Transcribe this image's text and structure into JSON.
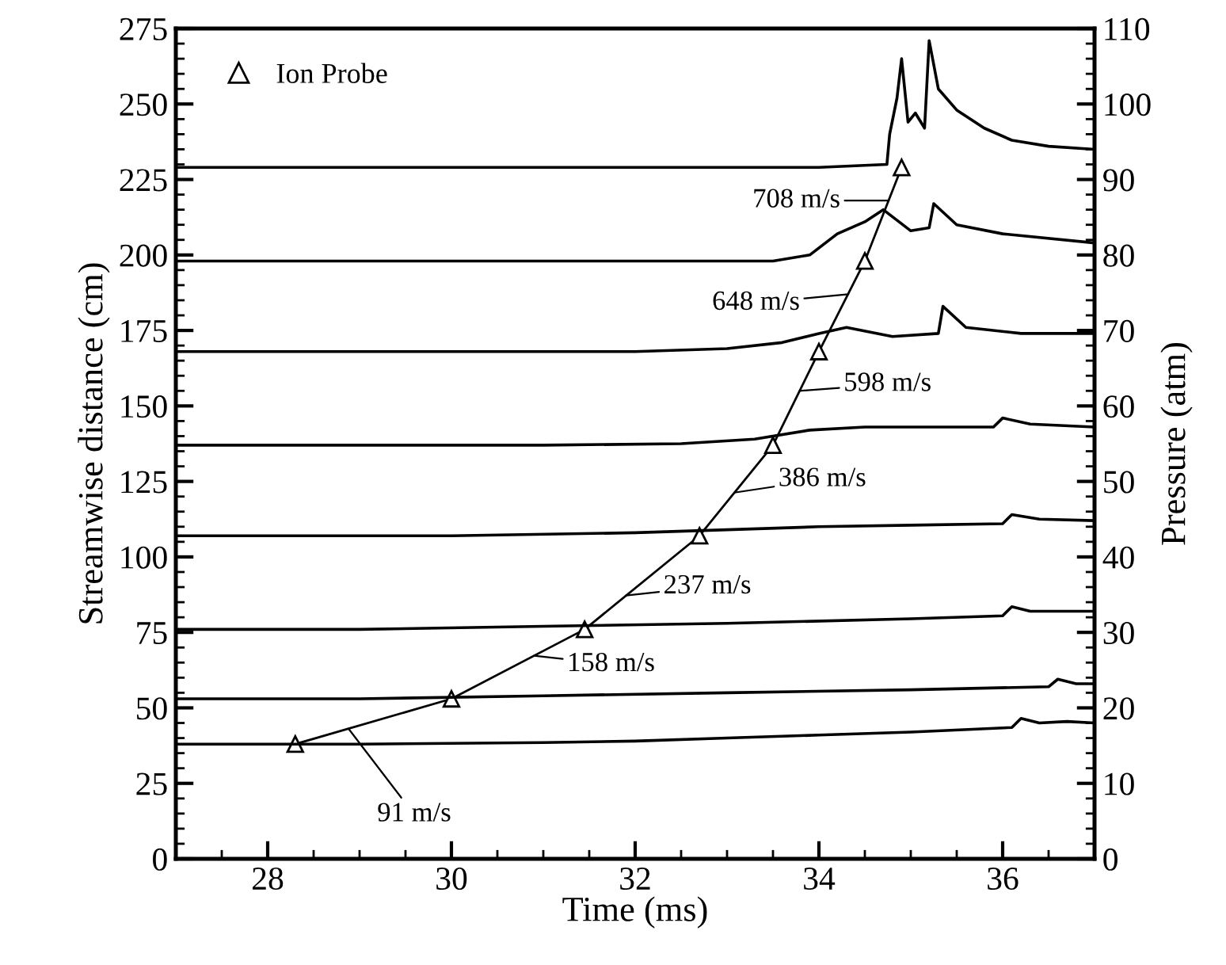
{
  "chart_data": {
    "type": "line",
    "xlabel": "Time (ms)",
    "ylabel": "Streamwise distance (cm)",
    "y2label": "Pressure (atm)",
    "xlim": [
      27,
      37
    ],
    "xticks": [
      28,
      30,
      32,
      34,
      36
    ],
    "ylim": [
      0,
      275
    ],
    "yticks": [
      0,
      25,
      50,
      75,
      100,
      125,
      150,
      175,
      200,
      225,
      250,
      275
    ],
    "y2lim": [
      0,
      110
    ],
    "y2ticks": [
      0,
      10,
      20,
      30,
      40,
      50,
      60,
      70,
      80,
      90,
      100,
      110
    ],
    "grid": false,
    "legend": "top left",
    "line_style": "solid",
    "series": [
      {
        "name": "Ion Probe",
        "color": "#000000",
        "marker": "triangle",
        "x": [
          28.3,
          30.0,
          31.45,
          32.7,
          33.5,
          34.0,
          34.5,
          34.9
        ],
        "values": [
          38,
          53,
          76,
          107,
          137,
          168,
          198,
          229
        ]
      },
      {
        "color": "#000000",
        "marker": "none",
        "x": [
          27,
          29,
          31,
          32,
          33,
          34,
          35,
          36.1,
          36.2,
          36.4,
          36.7,
          37
        ],
        "values": [
          38,
          38,
          38.5,
          39,
          40,
          41,
          42,
          43.5,
          46.5,
          45,
          45.5,
          45
        ]
      },
      {
        "color": "#000000",
        "marker": "none",
        "x": [
          27,
          29,
          31,
          33,
          35,
          36.5,
          36.6,
          36.8,
          37
        ],
        "values": [
          53,
          53,
          54,
          55,
          56,
          57,
          59.5,
          58,
          58
        ]
      },
      {
        "color": "#000000",
        "marker": "none",
        "x": [
          27,
          29,
          31,
          33,
          35,
          36.0,
          36.1,
          36.3,
          37
        ],
        "values": [
          76,
          76,
          77,
          78,
          79.5,
          80.5,
          83.5,
          82,
          82
        ]
      },
      {
        "color": "#000000",
        "marker": "none",
        "x": [
          27,
          30,
          32,
          33,
          34,
          35,
          36.0,
          36.1,
          36.4,
          37
        ],
        "values": [
          107,
          107,
          108,
          109,
          110,
          110.5,
          111,
          114,
          112.5,
          112
        ]
      },
      {
        "color": "#000000",
        "marker": "none",
        "x": [
          27,
          31,
          32.5,
          33.3,
          33.9,
          34.5,
          35.2,
          35.9,
          36.0,
          36.3,
          37
        ],
        "values": [
          137,
          137,
          137.5,
          139,
          142,
          143,
          143,
          143,
          146,
          144,
          143
        ]
      },
      {
        "color": "#000000",
        "marker": "none",
        "x": [
          27,
          32,
          33.0,
          33.6,
          34.0,
          34.3,
          34.8,
          35.3,
          35.35,
          35.6,
          36.2,
          37
        ],
        "values": [
          168,
          168,
          169,
          171,
          174,
          176,
          173,
          174,
          183,
          176,
          174,
          174
        ]
      },
      {
        "color": "#000000",
        "marker": "none",
        "x": [
          27,
          33.5,
          33.9,
          34.2,
          34.5,
          34.7,
          35.0,
          35.2,
          35.25,
          35.5,
          36.0,
          37
        ],
        "values": [
          198,
          198,
          200,
          207,
          211,
          215,
          208,
          209,
          217,
          210,
          207,
          204
        ]
      },
      {
        "color": "#000000",
        "marker": "none",
        "x": [
          27,
          34.0,
          34.74,
          34.77,
          34.85,
          34.9,
          34.97,
          35.05,
          35.15,
          35.2,
          35.3,
          35.5,
          35.8,
          36.1,
          36.5,
          37
        ],
        "values": [
          229,
          229,
          230,
          240,
          252,
          265,
          244,
          247,
          242,
          271,
          255,
          248,
          242,
          238,
          236,
          235
        ]
      }
    ],
    "annotations": [
      {
        "text": "91 m/s",
        "x": 28.88,
        "y": 43.1
      },
      {
        "text": "158 m/s",
        "x": 30.9,
        "y": 67.3
      },
      {
        "text": "237 m/s",
        "x": 31.9,
        "y": 87.2
      },
      {
        "text": "386 m/s",
        "x": 33.08,
        "y": 121.3
      },
      {
        "text": "598 m/s",
        "x": 33.79,
        "y": 155
      },
      {
        "text": "648 m/s",
        "x": 34.32,
        "y": 187
      },
      {
        "text": "708 m/s",
        "x": 34.76,
        "y": 218
      }
    ]
  }
}
